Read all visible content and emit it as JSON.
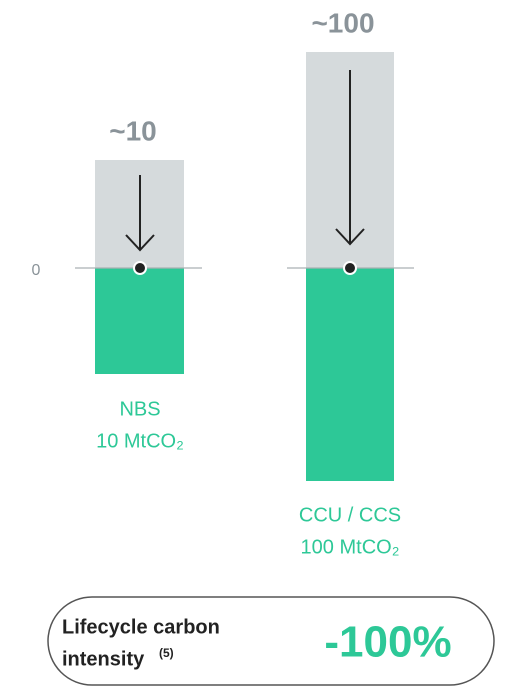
{
  "zero_label": "0",
  "items": [
    {
      "amount": "~10",
      "name": "NBS",
      "capacity": "10 MtCO₂"
    },
    {
      "amount": "~100",
      "name": "CCU / CCS",
      "capacity": "100 MtCO₂"
    }
  ],
  "badge": {
    "label_line1": "Lifecycle carbon",
    "label_line2": "intensity",
    "footnote": "(5)",
    "value": "-100%"
  }
}
